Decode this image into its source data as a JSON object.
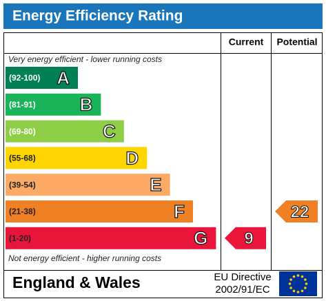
{
  "header": {
    "title": "Energy Efficiency Rating"
  },
  "columns": [
    "Current",
    "Potential"
  ],
  "top_note": "Very energy efficient - lower running costs",
  "bands": [
    {
      "range": "(92-100)",
      "letter": "A",
      "color": "#008054"
    },
    {
      "range": "(81-91)",
      "letter": "B",
      "color": "#19b459"
    },
    {
      "range": "(69-80)",
      "letter": "C",
      "color": "#8dce46"
    },
    {
      "range": "(55-68)",
      "letter": "D",
      "color": "#ffd500"
    },
    {
      "range": "(39-54)",
      "letter": "E",
      "color": "#fcaa65"
    },
    {
      "range": "(21-38)",
      "letter": "F",
      "color": "#ef8023"
    },
    {
      "range": "(1-20)",
      "letter": "G",
      "color": "#e9153b"
    }
  ],
  "bottom_note": "Not energy efficient - higher running costs",
  "current": {
    "value": 9
  },
  "potential": {
    "value": 22
  },
  "footer": {
    "region": "England & Wales",
    "directive_line1": "EU Directive",
    "directive_line2": "2002/91/EC"
  }
}
